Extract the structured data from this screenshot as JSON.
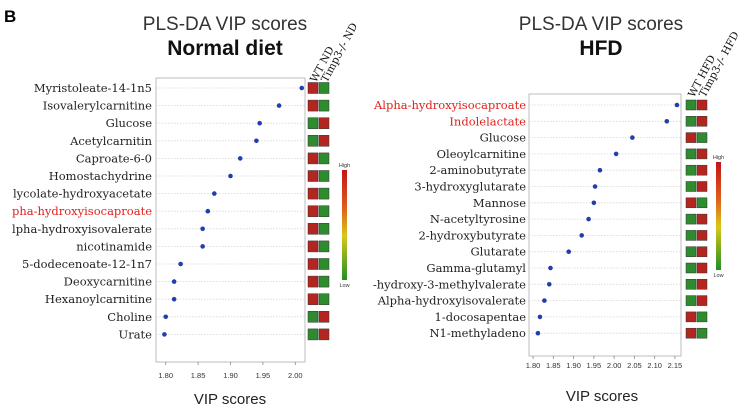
{
  "panel_label": "B",
  "colors": {
    "point": "#1f3fae",
    "highlight": "#e0201b",
    "cell_red": "#b3251f",
    "cell_green": "#2e8b2e"
  },
  "chart_data": [
    {
      "type": "scatter",
      "title": "PLS-DA VIP scores",
      "subtitle": "Normal diet",
      "xlabel": "VIP scores",
      "xlim": [
        1.785,
        2.015
      ],
      "xticks": [
        "1.80",
        "1.85",
        "1.90",
        "1.95",
        "2.00"
      ],
      "xtick_values": [
        1.8,
        1.85,
        1.9,
        1.95,
        2.0
      ],
      "grid": true,
      "categories": [
        "Myristoleate-14-1n5",
        "Isovalerylcarnitine",
        "Glucose",
        "Acetylcarnitin",
        "Caproate-6-0",
        "Homostachydrine",
        "lycolate-hydroxyacetate",
        "pha-hydroxyisocaproate",
        "lpha-hydroxyisovalerate",
        "nicotinamide",
        "5-dodecenoate-12-1n7",
        "Deoxycarnitine",
        "Hexanoylcarnitine",
        "Choline",
        "Urate"
      ],
      "highlighted": [
        "pha-hydroxyisocaproate"
      ],
      "values": [
        2.01,
        1.975,
        1.945,
        1.94,
        1.915,
        1.9,
        1.875,
        1.865,
        1.857,
        1.857,
        1.823,
        1.813,
        1.813,
        1.8,
        1.798
      ],
      "heatmap": {
        "columns": [
          "WT ND",
          "Timp3-/- ND"
        ],
        "cells": [
          [
            "red",
            "green"
          ],
          [
            "red",
            "green"
          ],
          [
            "green",
            "red"
          ],
          [
            "green",
            "red"
          ],
          [
            "red",
            "green"
          ],
          [
            "red",
            "green"
          ],
          [
            "red",
            "green"
          ],
          [
            "red",
            "green"
          ],
          [
            "red",
            "green"
          ],
          [
            "red",
            "green"
          ],
          [
            "red",
            "green"
          ],
          [
            "red",
            "green"
          ],
          [
            "red",
            "green"
          ],
          [
            "green",
            "red"
          ],
          [
            "green",
            "red"
          ]
        ]
      },
      "legend": {
        "high": "High",
        "low": "Low"
      }
    },
    {
      "type": "scatter",
      "title": "PLS-DA VIP scores",
      "subtitle": "HFD",
      "xlabel": "VIP scores",
      "xlim": [
        1.79,
        2.165
      ],
      "xticks": [
        "1.80",
        "1.85",
        "1.90",
        "1.95",
        "2.00",
        "2.05",
        "2.10",
        "2.15"
      ],
      "xtick_values": [
        1.8,
        1.85,
        1.9,
        1.95,
        2.0,
        2.05,
        2.1,
        2.15
      ],
      "grid": true,
      "categories": [
        "Alpha-hydroxyisocaproate",
        "Indolelactate",
        "Glucose",
        "Oleoylcarnitine",
        "2-aminobutyrate",
        "3-hydroxyglutarate",
        "Mannose",
        "N-acetyltyrosine",
        "2-hydroxybutyrate",
        "Glutarate",
        "Gamma-glutamyl",
        "-hydroxy-3-methylvalerate",
        "Alpha-hydroxyisovalerate",
        "1-docosapentae",
        "N1-methyladeno"
      ],
      "highlighted": [
        "Alpha-hydroxyisocaproate",
        "Indolelactate"
      ],
      "values": [
        2.155,
        2.13,
        2.045,
        2.005,
        1.965,
        1.953,
        1.95,
        1.937,
        1.92,
        1.888,
        1.843,
        1.84,
        1.828,
        1.817,
        1.812
      ],
      "heatmap": {
        "columns": [
          "WT HFD",
          "Timp3-/- HFD"
        ],
        "cells": [
          [
            "green",
            "red"
          ],
          [
            "green",
            "red"
          ],
          [
            "red",
            "green"
          ],
          [
            "green",
            "red"
          ],
          [
            "green",
            "red"
          ],
          [
            "green",
            "red"
          ],
          [
            "red",
            "green"
          ],
          [
            "green",
            "red"
          ],
          [
            "green",
            "red"
          ],
          [
            "green",
            "red"
          ],
          [
            "green",
            "red"
          ],
          [
            "green",
            "red"
          ],
          [
            "green",
            "red"
          ],
          [
            "red",
            "green"
          ],
          [
            "red",
            "green"
          ]
        ]
      },
      "legend": {
        "high": "High",
        "low": "Low"
      }
    }
  ]
}
